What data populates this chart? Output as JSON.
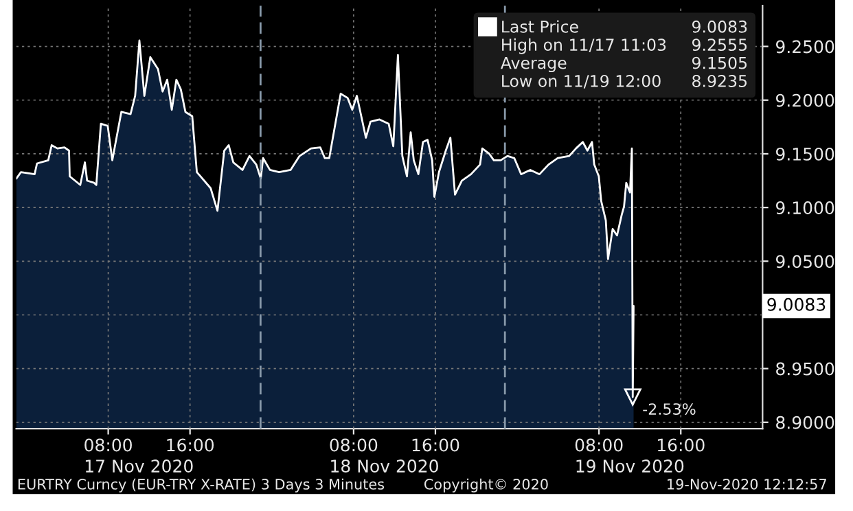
{
  "chart_data": {
    "type": "area",
    "x": [
      "2020-11-16T23:01",
      "2020-11-16T23:28",
      "2020-11-17T00:48",
      "2020-11-17T01:02",
      "2020-11-17T02:08",
      "2020-11-17T02:28",
      "2020-11-17T03:02",
      "2020-11-17T03:43",
      "2020-11-17T04:10",
      "2020-11-17T04:14",
      "2020-11-17T05:16",
      "2020-11-17T05:43",
      "2020-11-17T05:56",
      "2020-11-17T06:37",
      "2020-11-17T06:50",
      "2020-11-17T07:17",
      "2020-11-17T07:57",
      "2020-11-17T08:24",
      "2020-11-17T09:17",
      "2020-11-17T10:11",
      "2020-11-17T10:38",
      "2020-11-17T11:03",
      "2020-11-17T11:32",
      "2020-11-17T12:07",
      "2020-11-17T12:52",
      "2020-11-17T13:19",
      "2020-11-17T13:46",
      "2020-11-17T14:13",
      "2020-11-17T14:40",
      "2020-11-17T15:06",
      "2020-11-17T15:33",
      "2020-11-17T16:13",
      "2020-11-17T16:40",
      "2020-11-17T18:01",
      "2020-11-17T18:41",
      "2020-11-17T19:21",
      "2020-11-17T19:47",
      "2020-11-17T20:14",
      "2020-11-17T21:08",
      "2020-11-17T21:49",
      "2020-11-17T22:29",
      "2020-11-17T22:55",
      "2020-11-17T23:09",
      "2020-11-17T23:49",
      "2020-11-18T00:43",
      "2020-11-18T01:50",
      "2020-11-18T02:43",
      "2020-11-18T03:50",
      "2020-11-18T04:44",
      "2020-11-18T05:11",
      "2020-11-18T05:37",
      "2020-11-18T06:44",
      "2020-11-18T07:25",
      "2020-11-18T07:52",
      "2020-11-18T08:19",
      "2020-11-18T08:45",
      "2020-11-18T09:12",
      "2020-11-18T09:39",
      "2020-11-18T10:32",
      "2020-11-18T11:26",
      "2020-11-18T11:53",
      "2020-11-18T12:20",
      "2020-11-18T12:46",
      "2020-11-18T13:13",
      "2020-11-18T13:35",
      "2020-11-18T13:53",
      "2020-11-18T14:20",
      "2020-11-18T14:47",
      "2020-11-18T15:14",
      "2020-11-18T15:41",
      "2020-11-18T15:54",
      "2020-11-18T16:21",
      "2020-11-18T17:01",
      "2020-11-18T17:28",
      "2020-11-18T17:55",
      "2020-11-18T18:35",
      "2020-11-18T19:29",
      "2020-11-18T20:22",
      "2020-11-18T20:35",
      "2020-11-18T21:16",
      "2020-11-18T21:43",
      "2020-11-18T22:23",
      "2020-11-18T23:03",
      "2020-11-18T23:43",
      "2020-11-19T00:23",
      "2020-11-19T01:17",
      "2020-11-19T02:11",
      "2020-11-19T03:04",
      "2020-11-19T03:58",
      "2020-11-19T05:05",
      "2020-11-19T05:45",
      "2020-11-19T06:25",
      "2020-11-19T06:52",
      "2020-11-19T07:19",
      "2020-11-19T07:32",
      "2020-11-19T07:59",
      "2020-11-19T08:13",
      "2020-11-19T08:40",
      "2020-11-19T08:53",
      "2020-11-19T09:20",
      "2020-11-19T09:46",
      "2020-11-19T10:13",
      "2020-11-19T10:27",
      "2020-11-19T10:40",
      "2020-11-19T11:02",
      "2020-11-19T11:13",
      "2020-11-19T11:18",
      "2020-11-19T11:23"
    ],
    "series": [
      {
        "name": "Last Price",
        "color": "#ffffff",
        "values": [
          9.127,
          9.133,
          9.131,
          9.141,
          9.144,
          9.158,
          9.155,
          9.156,
          9.153,
          9.129,
          9.121,
          9.142,
          9.125,
          9.123,
          9.121,
          9.178,
          9.176,
          9.144,
          9.189,
          9.187,
          9.204,
          9.2555,
          9.204,
          9.24,
          9.229,
          9.208,
          9.219,
          9.191,
          9.219,
          9.21,
          9.189,
          9.185,
          9.133,
          9.118,
          9.097,
          9.153,
          9.158,
          9.142,
          9.135,
          9.148,
          9.14,
          9.127,
          9.146,
          9.135,
          9.133,
          9.135,
          9.148,
          9.155,
          9.156,
          9.146,
          9.146,
          9.206,
          9.202,
          9.191,
          9.204,
          9.185,
          9.165,
          9.18,
          9.182,
          9.178,
          9.157,
          9.242,
          9.148,
          9.129,
          9.17,
          9.144,
          9.131,
          9.161,
          9.163,
          9.144,
          9.11,
          9.133,
          9.153,
          9.165,
          9.112,
          9.125,
          9.131,
          9.14,
          9.155,
          9.15,
          9.144,
          9.144,
          9.148,
          9.146,
          9.131,
          9.135,
          9.131,
          9.14,
          9.146,
          9.148,
          9.155,
          9.161,
          9.153,
          9.161,
          9.14,
          9.129,
          9.106,
          9.088,
          9.052,
          9.08,
          9.074,
          9.093,
          9.101,
          9.123,
          9.114,
          9.155,
          8.9235,
          9.0083
        ]
      }
    ],
    "xlim": [
      "2020-11-16T23:00",
      "2020-11-20T00:00"
    ],
    "xticks": [
      {
        "value": "2020-11-17T08:00",
        "label": "08:00"
      },
      {
        "value": "2020-11-17T16:00",
        "label": "16:00"
      },
      {
        "value": "2020-11-18T08:00",
        "label": "08:00"
      },
      {
        "value": "2020-11-18T16:00",
        "label": "16:00"
      },
      {
        "value": "2020-11-19T08:00",
        "label": "08:00"
      },
      {
        "value": "2020-11-19T16:00",
        "label": "16:00"
      }
    ],
    "x2lim": [
      "2020-11-16T23:00",
      "2020-11-20T00:00"
    ],
    "x2ticks": [
      {
        "value": "2020-11-17T11:00",
        "label": "17 Nov 2020"
      },
      {
        "value": "2020-11-18T11:00",
        "label": "18 Nov 2020"
      },
      {
        "value": "2020-11-19T11:00",
        "label": "19 Nov 2020"
      }
    ],
    "ylim": [
      8.894,
      9.288
    ],
    "yticks": [
      {
        "value": 8.9,
        "label": "8.9000"
      },
      {
        "value": 8.95,
        "label": "8.9500"
      },
      {
        "value": 9.0,
        "label": null
      },
      {
        "value": 9.05,
        "label": "9.0500"
      },
      {
        "value": 9.1,
        "label": "9.1000"
      },
      {
        "value": 9.15,
        "label": "9.1500"
      },
      {
        "value": 9.2,
        "label": "9.2000"
      },
      {
        "value": 9.25,
        "label": "9.2500"
      }
    ],
    "ref_lines": [
      {
        "axis": "x",
        "value": "2020-11-17T22:54",
        "color": "#8899aa",
        "line_style": "dashed"
      },
      {
        "axis": "x",
        "value": "2020-11-18T22:48",
        "color": "#8899aa",
        "line_style": "dashed"
      }
    ],
    "grid": true,
    "legend": "top right",
    "annotations": [
      "9.0083",
      "High on 11/17 11:03",
      "9.2555",
      "Average",
      "9.1505",
      "Low on 11/19 12:00",
      "8.9235",
      "9.0083",
      {
        "text": "-2.53%",
        "x": "2020-11-19T11:18",
        "y": 8.9235
      },
      "EURTRY Curncy (EUR-TRY X-RATE) 3 Days 3 Minutes",
      "Copyright© 2020",
      "19-Nov-2020 12:12:57"
    ]
  }
}
